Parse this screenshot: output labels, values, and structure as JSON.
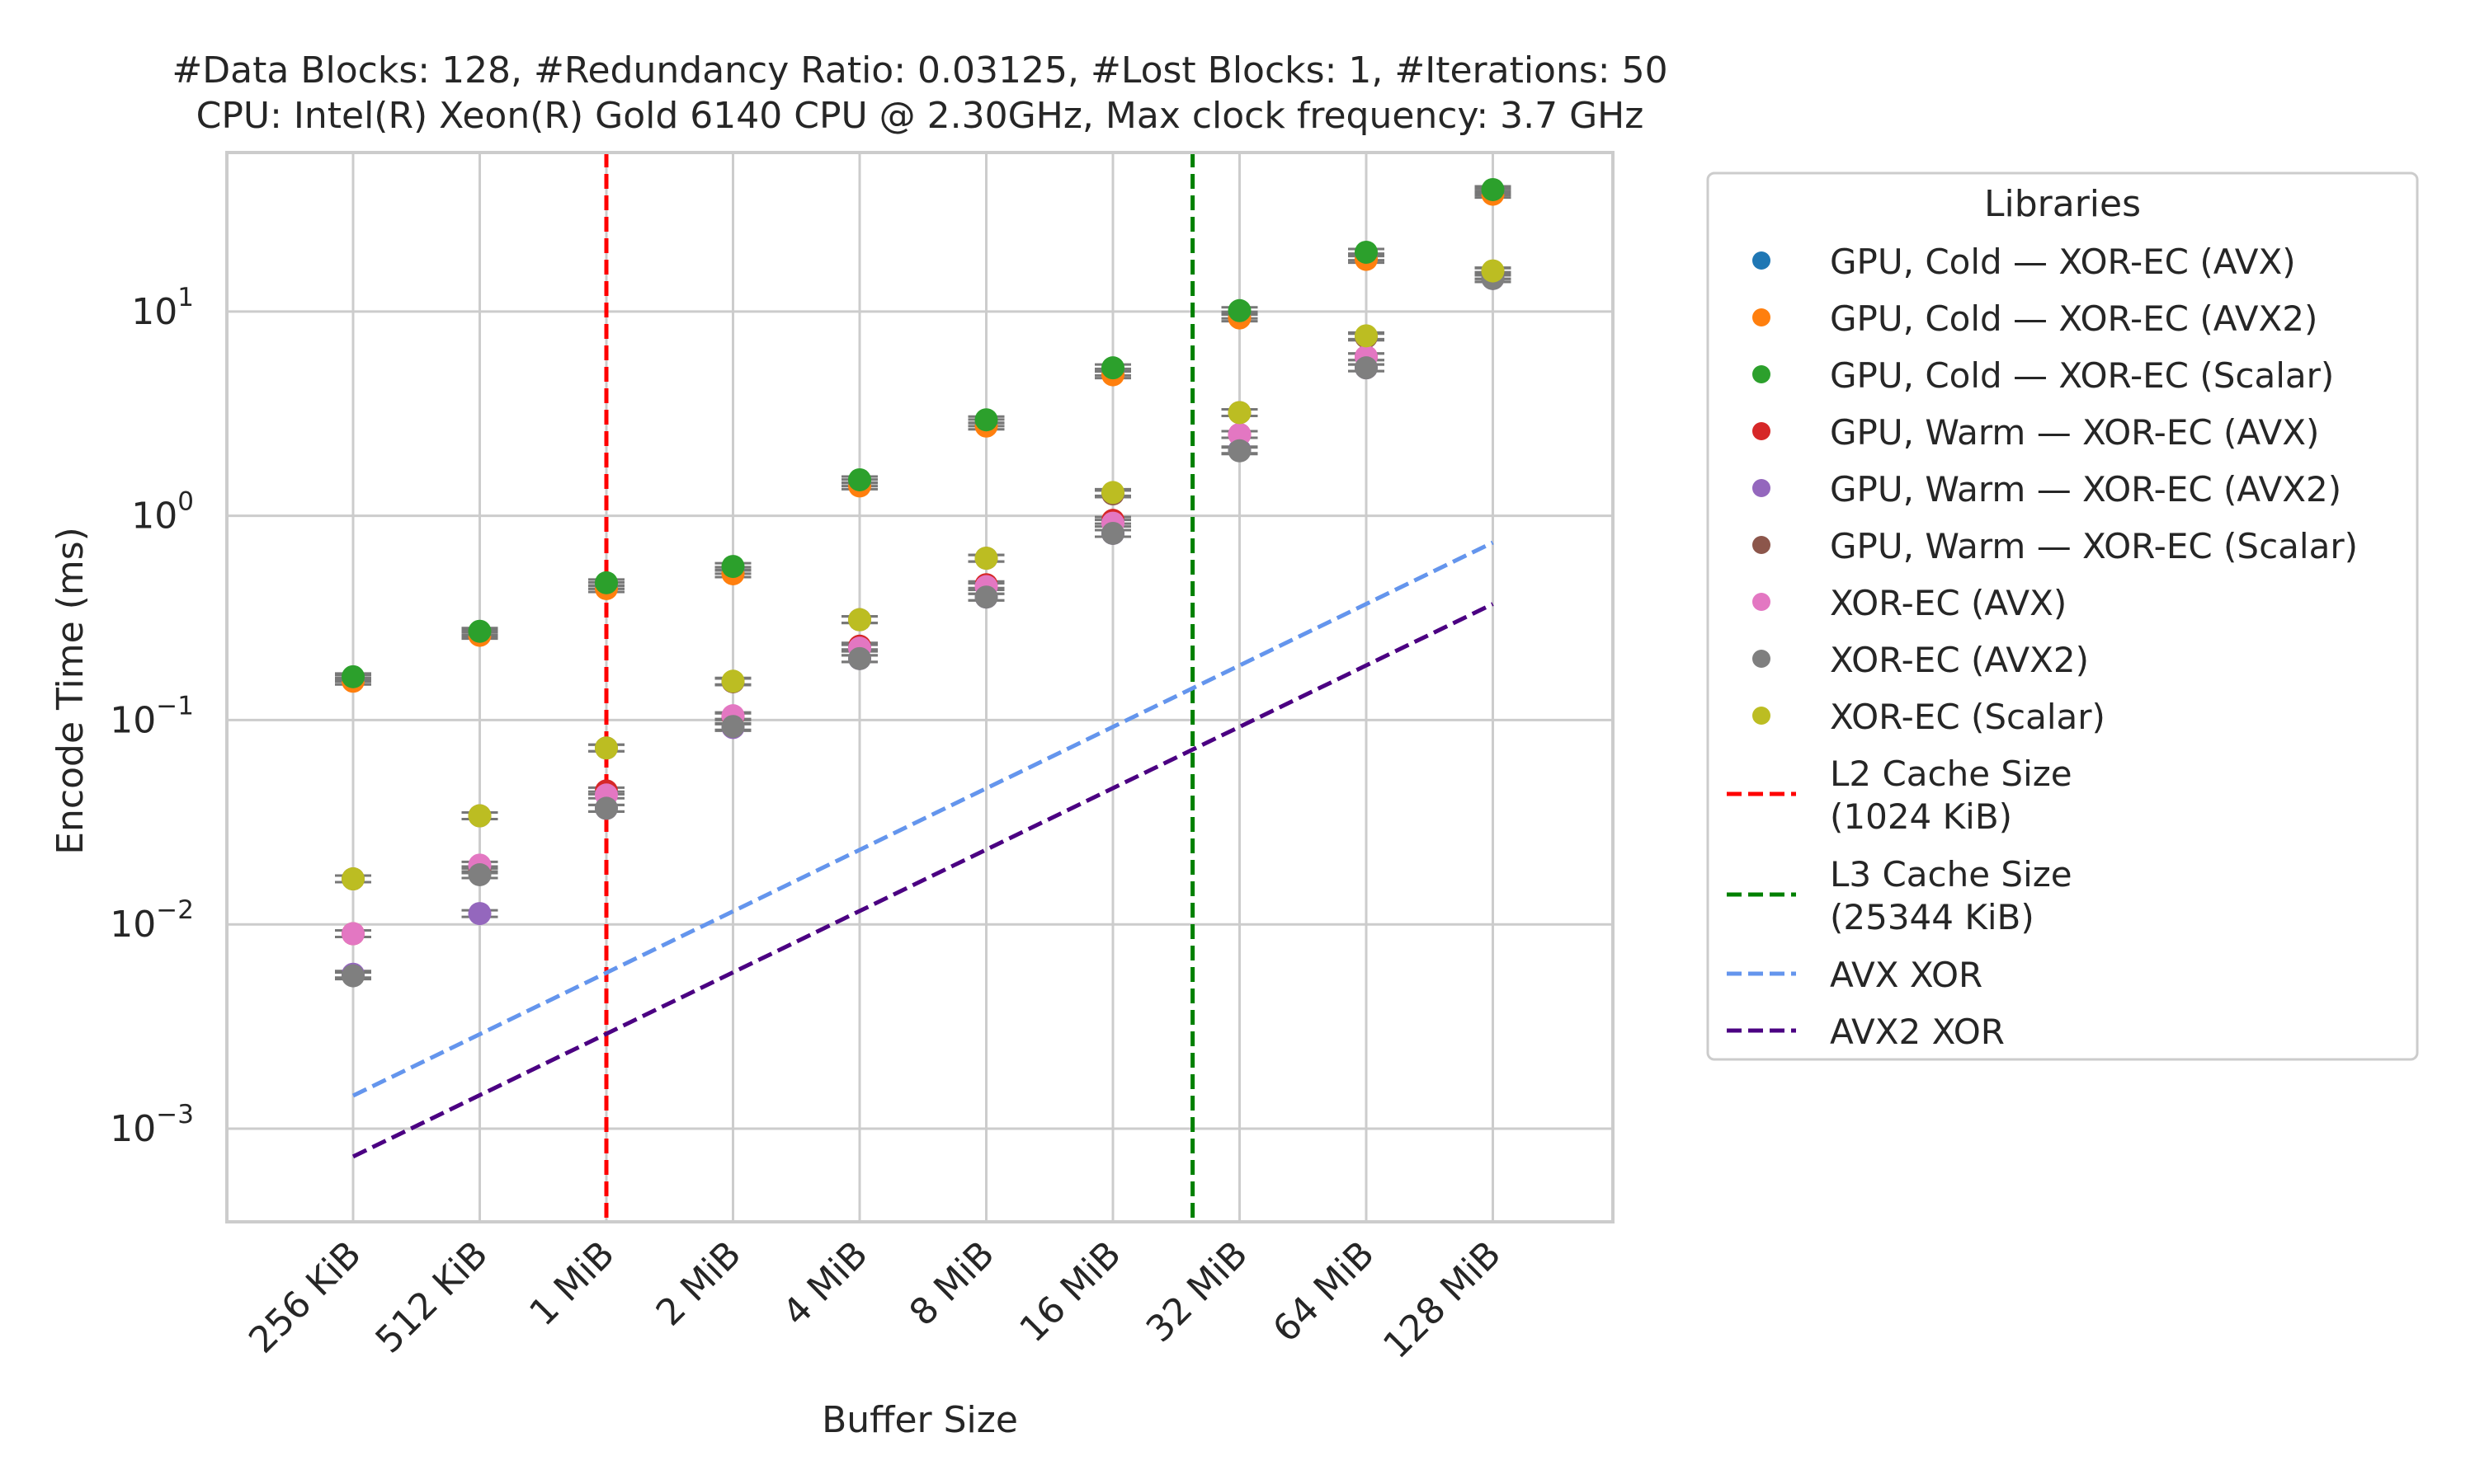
{
  "chart_data": {
    "type": "scatter",
    "title_line1": "#Data Blocks: 128, #Redundancy Ratio: 0.03125, #Lost Blocks: 1, #Iterations: 50",
    "title_line2": "CPU: Intel(R) Xeon(R) Gold 6140 CPU @ 2.30GHz, Max clock frequency: 3.7 GHz",
    "xlabel": "Buffer Size",
    "ylabel": "Encode Time (ms)",
    "yscale": "log",
    "ylim": [
      0.00035,
      60
    ],
    "categories": [
      "256 KiB",
      "512 KiB",
      "1 MiB",
      "2 MiB",
      "4 MiB",
      "8 MiB",
      "16 MiB",
      "32 MiB",
      "64 MiB",
      "128 MiB"
    ],
    "y_tick_labels": [
      {
        "value": 0.001,
        "base": "10",
        "exp": "−3"
      },
      {
        "value": 0.01,
        "base": "10",
        "exp": "−2"
      },
      {
        "value": 0.1,
        "base": "10",
        "exp": "−1"
      },
      {
        "value": 1,
        "base": "10",
        "exp": "0"
      },
      {
        "value": 10,
        "base": "10",
        "exp": "1"
      }
    ],
    "grid": true,
    "legend": {
      "title": "Libraries",
      "placement": "outside-right",
      "entries": [
        {
          "label": "GPU, Cold — XOR-EC (AVX)",
          "kind": "marker",
          "color": "#1f77b4"
        },
        {
          "label": "GPU, Cold — XOR-EC (AVX2)",
          "kind": "marker",
          "color": "#ff7f0e"
        },
        {
          "label": "GPU, Cold — XOR-EC (Scalar)",
          "kind": "marker",
          "color": "#2ca02c"
        },
        {
          "label": "GPU, Warm — XOR-EC (AVX)",
          "kind": "marker",
          "color": "#d62728"
        },
        {
          "label": "GPU, Warm — XOR-EC (AVX2)",
          "kind": "marker",
          "color": "#9467bd"
        },
        {
          "label": "GPU, Warm — XOR-EC (Scalar)",
          "kind": "marker",
          "color": "#8c564b"
        },
        {
          "label": "XOR-EC (AVX)",
          "kind": "marker",
          "color": "#e377c2"
        },
        {
          "label": "XOR-EC (AVX2)",
          "kind": "marker",
          "color": "#7f7f7f"
        },
        {
          "label": "XOR-EC (Scalar)",
          "kind": "marker",
          "color": "#bcbd22"
        },
        {
          "label": [
            "L2 Cache Size",
            "(1024 KiB)"
          ],
          "kind": "line",
          "color": "#ff0000"
        },
        {
          "label": [
            "L3 Cache Size",
            "(25344 KiB)"
          ],
          "kind": "line",
          "color": "#008000"
        },
        {
          "label": "AVX XOR",
          "kind": "line",
          "color": "#6495ed"
        },
        {
          "label": "AVX2 XOR",
          "kind": "line",
          "color": "#4b0082"
        }
      ]
    },
    "series": [
      {
        "name": "GPU, Cold — XOR-EC (AVX)",
        "color": "#1f77b4",
        "values": [
          0.16,
          0.265,
          0.455,
          0.54,
          1.45,
          2.85,
          5.05,
          9.6,
          18.5,
          38.5
        ]
      },
      {
        "name": "GPU, Cold — XOR-EC (AVX2)",
        "color": "#ff7f0e",
        "values": [
          0.155,
          0.26,
          0.44,
          0.52,
          1.4,
          2.75,
          4.9,
          9.3,
          18.0,
          37.5
        ]
      },
      {
        "name": "GPU, Cold — XOR-EC (Scalar)",
        "color": "#2ca02c",
        "values": [
          0.163,
          0.272,
          0.47,
          0.565,
          1.5,
          2.95,
          5.3,
          10.1,
          19.5,
          39.5
        ]
      },
      {
        "name": "GPU, Warm — XOR-EC (AVX)",
        "color": "#d62728",
        "values": [
          0.009,
          0.0185,
          0.045,
          0.104,
          0.23,
          0.46,
          0.95,
          2.5,
          6.0,
          15.0
        ]
      },
      {
        "name": "GPU, Warm — XOR-EC (AVX2)",
        "color": "#9467bd",
        "values": [
          0.0057,
          0.0113,
          0.037,
          0.092,
          0.2,
          0.4,
          0.82,
          2.1,
          5.3,
          14.5
        ]
      },
      {
        "name": "GPU, Warm — XOR-EC (Scalar)",
        "color": "#8c564b",
        "values": [
          0.0167,
          0.034,
          0.073,
          0.154,
          0.31,
          0.62,
          1.28,
          3.2,
          7.5,
          15.7
        ]
      },
      {
        "name": "XOR-EC (AVX)",
        "color": "#e377c2",
        "values": [
          0.009,
          0.0195,
          0.043,
          0.105,
          0.225,
          0.45,
          0.92,
          2.5,
          6.0,
          15.0
        ]
      },
      {
        "name": "XOR-EC (AVX2)",
        "color": "#7f7f7f",
        "values": [
          0.0056,
          0.0175,
          0.037,
          0.093,
          0.2,
          0.4,
          0.82,
          2.08,
          5.3,
          14.5
        ]
      },
      {
        "name": "XOR-EC (Scalar)",
        "color": "#bcbd22",
        "values": [
          0.0167,
          0.034,
          0.073,
          0.155,
          0.31,
          0.62,
          1.3,
          3.2,
          7.6,
          15.8
        ]
      }
    ],
    "vertical_lines": [
      {
        "name": "L2 Cache Size (1024 KiB)",
        "color": "#ff0000",
        "x_kib": 1024
      },
      {
        "name": "L3 Cache Size (25344 KiB)",
        "color": "#008000",
        "x_kib": 25344
      }
    ],
    "reference_lines": [
      {
        "name": "AVX XOR",
        "color": "#6495ed",
        "from": {
          "x": "256 KiB",
          "y": 0.00145
        },
        "to": {
          "x": "128 MiB",
          "y": 0.74
        }
      },
      {
        "name": "AVX2 XOR",
        "color": "#4b0082",
        "from": {
          "x": "256 KiB",
          "y": 0.00073
        },
        "to": {
          "x": "128 MiB",
          "y": 0.37
        }
      }
    ]
  }
}
